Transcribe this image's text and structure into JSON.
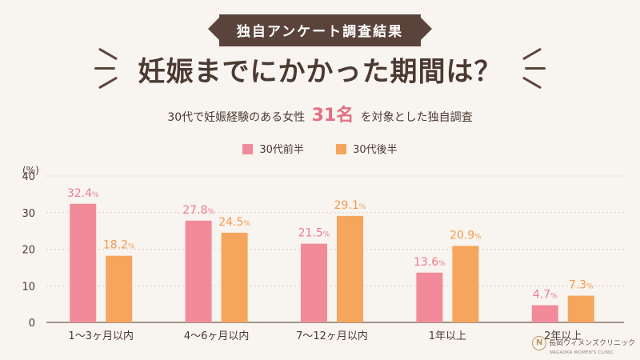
{
  "header": {
    "badge": "独自アンケート調査結果",
    "title": "妊娠までにかかった期間は？",
    "subtitle_pre": "30代で妊娠経験のある女性",
    "subtitle_num": "31名",
    "subtitle_post": "を対象とした独自調査"
  },
  "logo": {
    "mark": "N",
    "name": "長岡ウィメンズクリニック",
    "sub": "NAGAOKA WOMEN'S CLINIC"
  },
  "colors": {
    "series1": "#f28b99",
    "series2": "#f5a65c",
    "label1": "#ee7d8e",
    "label2": "#f39b50",
    "text": "#4a3a32"
  },
  "chart_data": {
    "type": "bar",
    "unit_label": "(%)",
    "categories": [
      "1～3ヶ月以内",
      "4～6ヶ月以内",
      "7～12ヶ月以内",
      "1年以上",
      "2年以上"
    ],
    "series": [
      {
        "name": "30代前半",
        "values": [
          32.4,
          27.8,
          21.5,
          13.6,
          4.7
        ]
      },
      {
        "name": "30代後半",
        "values": [
          18.2,
          24.5,
          29.1,
          20.9,
          7.3
        ]
      }
    ],
    "yticks": [
      "0",
      "10",
      "20",
      "30",
      "40"
    ],
    "ylim": [
      0,
      40
    ],
    "grid": true,
    "value_suffix": "%",
    "legend_position": "top-center"
  }
}
